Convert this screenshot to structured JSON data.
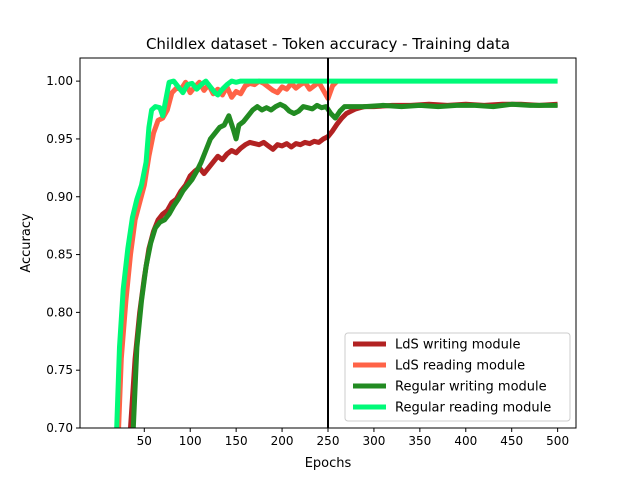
{
  "chart_data": {
    "type": "line",
    "title": "Childlex dataset - Token accuracy - Training data",
    "xlabel": "Epochs",
    "ylabel": "Accuracy",
    "xlim": [
      -20,
      520
    ],
    "ylim": [
      0.7,
      1.02
    ],
    "xticks": [
      "50",
      "100",
      "150",
      "200",
      "250",
      "300",
      "350",
      "400",
      "450",
      "500"
    ],
    "yticks": [
      "0.70",
      "0.75",
      "0.80",
      "0.85",
      "0.90",
      "0.95",
      "1.00"
    ],
    "vline_x": 250,
    "legend_position": "lower-right",
    "series": [
      {
        "name": "LdS writing module",
        "color": "#b22222",
        "points": [
          [
            35,
            0.7
          ],
          [
            40,
            0.76
          ],
          [
            45,
            0.8
          ],
          [
            50,
            0.83
          ],
          [
            55,
            0.855
          ],
          [
            60,
            0.87
          ],
          [
            65,
            0.88
          ],
          [
            70,
            0.885
          ],
          [
            75,
            0.888
          ],
          [
            80,
            0.895
          ],
          [
            85,
            0.898
          ],
          [
            90,
            0.905
          ],
          [
            95,
            0.91
          ],
          [
            100,
            0.918
          ],
          [
            105,
            0.922
          ],
          [
            110,
            0.925
          ],
          [
            115,
            0.92
          ],
          [
            120,
            0.925
          ],
          [
            125,
            0.93
          ],
          [
            130,
            0.935
          ],
          [
            135,
            0.932
          ],
          [
            140,
            0.937
          ],
          [
            145,
            0.94
          ],
          [
            150,
            0.938
          ],
          [
            155,
            0.942
          ],
          [
            160,
            0.945
          ],
          [
            165,
            0.947
          ],
          [
            170,
            0.946
          ],
          [
            175,
            0.945
          ],
          [
            180,
            0.947
          ],
          [
            185,
            0.944
          ],
          [
            190,
            0.941
          ],
          [
            195,
            0.945
          ],
          [
            200,
            0.944
          ],
          [
            205,
            0.946
          ],
          [
            210,
            0.943
          ],
          [
            215,
            0.946
          ],
          [
            220,
            0.945
          ],
          [
            225,
            0.947
          ],
          [
            230,
            0.946
          ],
          [
            235,
            0.948
          ],
          [
            240,
            0.947
          ],
          [
            245,
            0.95
          ],
          [
            250,
            0.952
          ],
          [
            255,
            0.957
          ],
          [
            260,
            0.963
          ],
          [
            265,
            0.968
          ],
          [
            270,
            0.972
          ],
          [
            275,
            0.974
          ],
          [
            280,
            0.976
          ],
          [
            285,
            0.977
          ],
          [
            290,
            0.978
          ],
          [
            300,
            0.978
          ],
          [
            320,
            0.979
          ],
          [
            340,
            0.979
          ],
          [
            360,
            0.98
          ],
          [
            380,
            0.979
          ],
          [
            400,
            0.98
          ],
          [
            420,
            0.979
          ],
          [
            440,
            0.98
          ],
          [
            460,
            0.98
          ],
          [
            480,
            0.979
          ],
          [
            500,
            0.98
          ]
        ]
      },
      {
        "name": "LdS reading module",
        "color": "#ff6347",
        "points": [
          [
            22,
            0.7
          ],
          [
            25,
            0.76
          ],
          [
            30,
            0.81
          ],
          [
            35,
            0.85
          ],
          [
            40,
            0.88
          ],
          [
            45,
            0.895
          ],
          [
            50,
            0.91
          ],
          [
            55,
            0.935
          ],
          [
            60,
            0.955
          ],
          [
            65,
            0.966
          ],
          [
            70,
            0.968
          ],
          [
            75,
            0.975
          ],
          [
            80,
            0.99
          ],
          [
            85,
            0.994
          ],
          [
            90,
            0.993
          ],
          [
            95,
            0.999
          ],
          [
            100,
            0.99
          ],
          [
            105,
            0.995
          ],
          [
            110,
            0.999
          ],
          [
            115,
            0.992
          ],
          [
            120,
            0.997
          ],
          [
            125,
            0.989
          ],
          [
            130,
            0.993
          ],
          [
            135,
            0.988
          ],
          [
            140,
            0.995
          ],
          [
            145,
            0.986
          ],
          [
            150,
            0.991
          ],
          [
            155,
            0.989
          ],
          [
            160,
            0.996
          ],
          [
            165,
            0.998
          ],
          [
            170,
            0.997
          ],
          [
            175,
            1.0
          ],
          [
            180,
            0.998
          ],
          [
            185,
            0.995
          ],
          [
            190,
            0.992
          ],
          [
            195,
            0.99
          ],
          [
            200,
            0.995
          ],
          [
            205,
            0.993
          ],
          [
            210,
            0.998
          ],
          [
            215,
            0.994
          ],
          [
            220,
            0.997
          ],
          [
            225,
            0.999
          ],
          [
            230,
            0.993
          ],
          [
            235,
            0.996
          ],
          [
            240,
            0.999
          ],
          [
            245,
            0.992
          ],
          [
            250,
            0.985
          ],
          [
            255,
            0.996
          ],
          [
            260,
            1.0
          ]
        ]
      },
      {
        "name": "Regular writing module",
        "color": "#228b22",
        "points": [
          [
            38,
            0.7
          ],
          [
            42,
            0.77
          ],
          [
            47,
            0.81
          ],
          [
            52,
            0.84
          ],
          [
            57,
            0.86
          ],
          [
            62,
            0.873
          ],
          [
            67,
            0.878
          ],
          [
            72,
            0.88
          ],
          [
            77,
            0.885
          ],
          [
            82,
            0.892
          ],
          [
            87,
            0.898
          ],
          [
            92,
            0.905
          ],
          [
            97,
            0.91
          ],
          [
            102,
            0.915
          ],
          [
            107,
            0.922
          ],
          [
            112,
            0.93
          ],
          [
            117,
            0.94
          ],
          [
            122,
            0.95
          ],
          [
            127,
            0.955
          ],
          [
            132,
            0.96
          ],
          [
            137,
            0.962
          ],
          [
            142,
            0.97
          ],
          [
            147,
            0.958
          ],
          [
            150,
            0.95
          ],
          [
            153,
            0.962
          ],
          [
            158,
            0.965
          ],
          [
            163,
            0.97
          ],
          [
            168,
            0.975
          ],
          [
            173,
            0.978
          ],
          [
            178,
            0.975
          ],
          [
            183,
            0.977
          ],
          [
            188,
            0.975
          ],
          [
            193,
            0.978
          ],
          [
            198,
            0.98
          ],
          [
            203,
            0.978
          ],
          [
            208,
            0.974
          ],
          [
            213,
            0.972
          ],
          [
            218,
            0.974
          ],
          [
            223,
            0.978
          ],
          [
            228,
            0.977
          ],
          [
            233,
            0.976
          ],
          [
            238,
            0.979
          ],
          [
            243,
            0.977
          ],
          [
            248,
            0.978
          ],
          [
            253,
            0.972
          ],
          [
            258,
            0.968
          ],
          [
            263,
            0.974
          ],
          [
            268,
            0.978
          ],
          [
            275,
            0.978
          ],
          [
            290,
            0.978
          ],
          [
            310,
            0.979
          ],
          [
            330,
            0.978
          ],
          [
            350,
            0.979
          ],
          [
            370,
            0.978
          ],
          [
            390,
            0.979
          ],
          [
            410,
            0.979
          ],
          [
            430,
            0.978
          ],
          [
            450,
            0.98
          ],
          [
            470,
            0.979
          ],
          [
            500,
            0.979
          ]
        ]
      },
      {
        "name": "Regular reading module",
        "color": "#00fa78",
        "points": [
          [
            20,
            0.7
          ],
          [
            23,
            0.77
          ],
          [
            27,
            0.82
          ],
          [
            32,
            0.855
          ],
          [
            37,
            0.882
          ],
          [
            42,
            0.898
          ],
          [
            47,
            0.91
          ],
          [
            52,
            0.93
          ],
          [
            55,
            0.96
          ],
          [
            58,
            0.975
          ],
          [
            62,
            0.978
          ],
          [
            67,
            0.977
          ],
          [
            70,
            0.97
          ],
          [
            73,
            0.982
          ],
          [
            77,
            0.999
          ],
          [
            82,
            1.0
          ],
          [
            87,
            0.995
          ],
          [
            92,
            0.99
          ],
          [
            97,
            0.997
          ],
          [
            102,
            0.998
          ],
          [
            107,
            0.993
          ],
          [
            112,
            0.997
          ],
          [
            117,
            1.0
          ],
          [
            122,
            0.995
          ],
          [
            127,
            0.99
          ],
          [
            130,
            0.988
          ],
          [
            135,
            0.993
          ],
          [
            140,
            0.997
          ],
          [
            145,
            1.0
          ],
          [
            150,
            0.999
          ],
          [
            155,
            1.0
          ],
          [
            170,
            1.0
          ],
          [
            200,
            1.0
          ],
          [
            250,
            1.0
          ],
          [
            300,
            1.0
          ],
          [
            350,
            1.0
          ],
          [
            400,
            1.0
          ],
          [
            450,
            1.0
          ],
          [
            500,
            1.0
          ]
        ]
      }
    ]
  }
}
